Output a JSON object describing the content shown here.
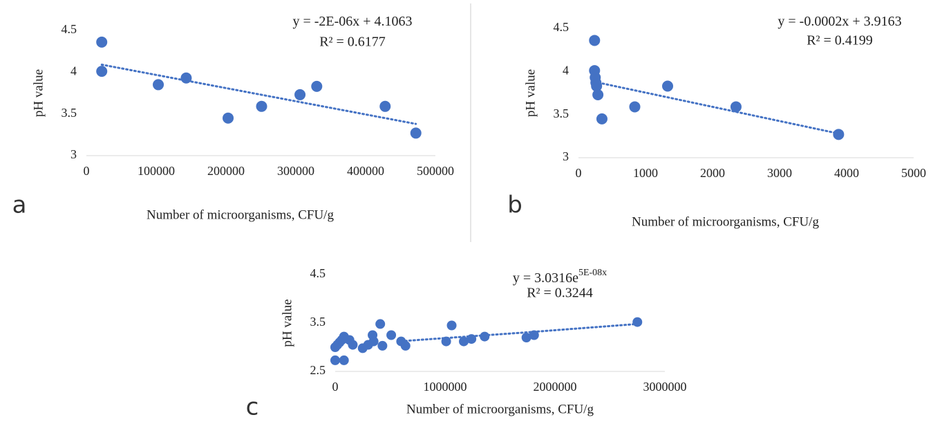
{
  "chart_data": [
    {
      "type": "scatter",
      "panel": "a",
      "y_label": "pH value",
      "x_label": "Number of microorganisms, CFU/g",
      "equation": "y = -2E-06x + 4.1063",
      "r2": "R² = 0.6177",
      "color": "#4472c4",
      "x": [
        22000,
        22000,
        103000,
        143000,
        203000,
        251000,
        306000,
        330000,
        428000,
        472000
      ],
      "values": [
        4.36,
        4.01,
        3.85,
        3.93,
        3.45,
        3.59,
        3.73,
        3.83,
        3.59,
        3.27
      ],
      "trendline": {
        "x": [
          22000,
          472000
        ],
        "y": [
          4.09,
          3.38
        ]
      },
      "xlim": [
        0,
        500000
      ],
      "ylim": [
        3,
        4.5
      ],
      "xticks": [
        0,
        100000,
        200000,
        300000,
        400000,
        500000
      ],
      "yticks": [
        3,
        3.5,
        4,
        4.5
      ]
    },
    {
      "type": "scatter",
      "panel": "b",
      "y_label": "pH value",
      "x_label": "Number of microorganisms, CFU/g",
      "equation": "y = -0.0002x + 3.9163",
      "r2": "R² = 0.4199",
      "color": "#4472c4",
      "x": [
        240,
        240,
        250,
        260,
        270,
        290,
        350,
        840,
        1330,
        2350,
        3880
      ],
      "values": [
        4.36,
        4.01,
        3.93,
        3.87,
        3.83,
        3.73,
        3.45,
        3.59,
        3.83,
        3.59,
        3.27
      ],
      "trendline": {
        "x": [
          240,
          3880
        ],
        "y": [
          3.88,
          3.28
        ]
      },
      "xlim": [
        0,
        5000
      ],
      "ylim": [
        3,
        4.5
      ],
      "xticks": [
        0,
        1000,
        2000,
        3000,
        4000,
        5000
      ],
      "yticks": [
        3,
        3.5,
        4,
        4.5
      ]
    },
    {
      "type": "scatter",
      "panel": "c",
      "y_label": "pH value",
      "x_label": "Number of microorganisms, CFU/g",
      "equation": "y = 3.0316e",
      "equation_exponent": "5E-08x",
      "r2": "R² = 0.3244",
      "color": "#4472c4",
      "x": [
        0,
        0,
        20000,
        40000,
        60000,
        80000,
        80000,
        130000,
        160000,
        250000,
        300000,
        340000,
        350000,
        410000,
        430000,
        510000,
        600000,
        640000,
        1010000,
        1060000,
        1170000,
        1240000,
        1360000,
        1740000,
        1810000,
        2750000
      ],
      "values": [
        2.73,
        3.0,
        3.05,
        3.1,
        3.15,
        3.22,
        2.73,
        3.15,
        3.05,
        2.98,
        3.05,
        3.25,
        3.12,
        3.48,
        3.03,
        3.25,
        3.12,
        3.03,
        3.12,
        3.45,
        3.12,
        3.17,
        3.22,
        3.2,
        3.25,
        3.52
      ],
      "trendline": {
        "x": [
          600000,
          1700000,
          2750000
        ],
        "y": [
          3.125,
          3.3,
          3.48
        ]
      },
      "xlim": [
        0,
        3000000
      ],
      "ylim": [
        2.5,
        4.5
      ],
      "xticks": [
        0,
        1000000,
        2000000,
        3000000
      ],
      "yticks": [
        2.5,
        3.5,
        4.5
      ]
    }
  ]
}
